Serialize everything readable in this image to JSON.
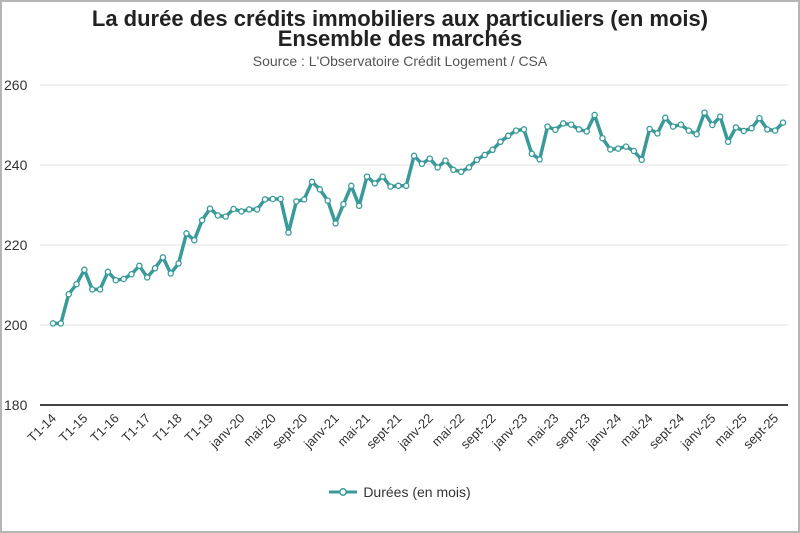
{
  "chart_data": {
    "type": "line",
    "title": "La durée des crédits immobiliers aux particuliers (en mois)",
    "subtitle": "Ensemble des marchés",
    "source": "Source : L'Observatoire Crédit Logement / CSA",
    "xlabel": "",
    "ylabel": "",
    "ylim": [
      180,
      260
    ],
    "yticks": [
      180,
      200,
      220,
      240,
      260
    ],
    "grid": true,
    "legend_position": "bottom",
    "x_tick_labels": [
      "T1-14",
      "T1-15",
      "T1-16",
      "T1-17",
      "T1-18",
      "T1-19",
      "janv-20",
      "mai-20",
      "sept-20",
      "janv-21",
      "mai-21",
      "sept-21",
      "janv-22",
      "mai-22",
      "sept-22",
      "janv-23",
      "mai-23",
      "sept-23",
      "janv-24",
      "mai-24",
      "sept-24",
      "janv-25",
      "mai-25",
      "sept-25"
    ],
    "x_tick_every": 4,
    "series": [
      {
        "name": "Durées (en mois)",
        "color": "#3a9a9a",
        "values": [
          200.4,
          200.4,
          207.7,
          210.2,
          213.8,
          208.9,
          208.9,
          213.3,
          211.2,
          211.5,
          212.7,
          214.8,
          211.9,
          214.2,
          216.9,
          212.9,
          215.4,
          222.9,
          221.2,
          226.2,
          229.1,
          227.4,
          227.1,
          229.0,
          228.4,
          228.9,
          228.9,
          231.4,
          231.5,
          231.5,
          223.1,
          230.9,
          231.4,
          235.8,
          233.9,
          231.1,
          225.4,
          230.2,
          234.8,
          229.8,
          237.1,
          235.4,
          237.1,
          234.6,
          234.8,
          234.8,
          242.3,
          240.3,
          241.6,
          239.4,
          241.1,
          238.8,
          238.3,
          239.4,
          241.3,
          242.5,
          243.8,
          245.8,
          247.3,
          248.6,
          248.9,
          242.8,
          241.4,
          249.6,
          248.8,
          250.4,
          250.1,
          248.9,
          248.4,
          252.5,
          246.7,
          243.9,
          244.1,
          244.6,
          243.5,
          241.3,
          249.0,
          247.9,
          251.8,
          249.6,
          250.1,
          248.6,
          247.7,
          253.1,
          250.0,
          252.1,
          245.8,
          249.4,
          248.5,
          249.2,
          251.7,
          248.9,
          248.6,
          250.6
        ]
      }
    ]
  }
}
